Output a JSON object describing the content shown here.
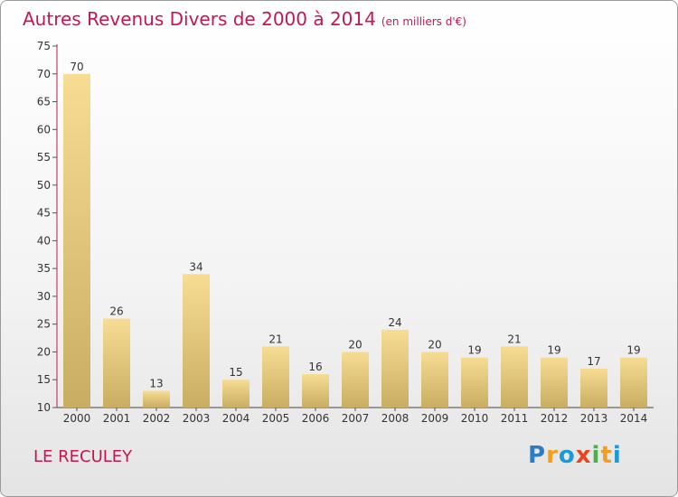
{
  "title": "Autres Revenus Divers de 2000 à 2014",
  "subtitle": "(en milliers d'€)",
  "commune": "LE RECULEY",
  "brand": {
    "letters": [
      "P",
      "r",
      "o",
      "x",
      "i",
      "t",
      "i"
    ],
    "colors": [
      "#2e7cc2",
      "#f0a020",
      "#1a9ad6",
      "#e8451f",
      "#4ab04a",
      "#f0a020",
      "#1a9ad6"
    ]
  },
  "colors": {
    "accent": "#c4174f",
    "bar_light": "#f7dd94",
    "bar_dark": "#c8ad62"
  },
  "chart_data": {
    "type": "bar",
    "categories": [
      "2000",
      "2001",
      "2002",
      "2003",
      "2004",
      "2005",
      "2006",
      "2007",
      "2008",
      "2009",
      "2010",
      "2011",
      "2012",
      "2013",
      "2014"
    ],
    "values": [
      70,
      26,
      13,
      34,
      15,
      21,
      16,
      20,
      24,
      20,
      19,
      21,
      19,
      17,
      19
    ],
    "ylim": [
      10,
      75
    ],
    "yticks": [
      10,
      15,
      20,
      25,
      30,
      35,
      40,
      45,
      50,
      55,
      60,
      65,
      70,
      75
    ],
    "grid": false,
    "legend": "none"
  }
}
